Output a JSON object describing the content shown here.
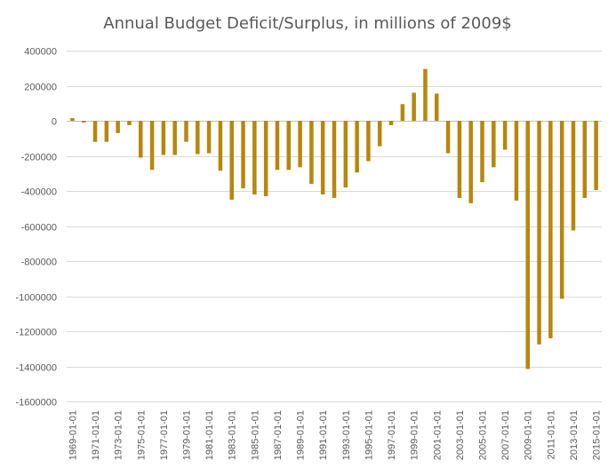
{
  "chart_data": {
    "type": "bar",
    "title": "Annual Budget Deficit/Surplus, in millions of 2009$",
    "xlabel": "",
    "ylabel": "",
    "ylim": [
      -1600000,
      400000
    ],
    "yticks": [
      400000,
      200000,
      0,
      -200000,
      -400000,
      -600000,
      -800000,
      -1000000,
      -1200000,
      -1400000,
      -1600000
    ],
    "ytick_labels": [
      "400000",
      "200000",
      "0",
      "-200000",
      "-400000",
      "-600000",
      "-800000",
      "-1000000",
      "-1200000",
      "-1400000",
      "-1600000"
    ],
    "grid": true,
    "bar_color": "#B8860B",
    "categories": [
      "1969-01-01",
      "1970-01-01",
      "1971-01-01",
      "1972-01-01",
      "1973-01-01",
      "1974-01-01",
      "1975-01-01",
      "1976-01-01",
      "1977-01-01",
      "1978-01-01",
      "1979-01-01",
      "1980-01-01",
      "1981-01-01",
      "1982-01-01",
      "1983-01-01",
      "1984-01-01",
      "1985-01-01",
      "1986-01-01",
      "1987-01-01",
      "1988-01-01",
      "1989-01-01",
      "1990-01-01",
      "1991-01-01",
      "1992-01-01",
      "1993-01-01",
      "1994-01-01",
      "1995-01-01",
      "1996-01-01",
      "1997-01-01",
      "1998-01-01",
      "1999-01-01",
      "2000-01-01",
      "2001-01-01",
      "2002-01-01",
      "2003-01-01",
      "2004-01-01",
      "2005-01-01",
      "2006-01-01",
      "2007-01-01",
      "2008-01-01",
      "2009-01-01",
      "2010-01-01",
      "2011-01-01",
      "2012-01-01",
      "2013-01-01",
      "2014-01-01",
      "2015-01-01"
    ],
    "shown_tick_labels": [
      "1969-01-01",
      "1971-01-01",
      "1973-01-01",
      "1975-01-01",
      "1977-01-01",
      "1979-01-01",
      "1981-01-01",
      "1983-01-01",
      "1985-01-01",
      "1987-01-01",
      "1989-01-01",
      "1991-01-01",
      "1993-01-01",
      "1995-01-01",
      "1997-01-01",
      "1999-01-01",
      "2001-01-01",
      "2003-01-01",
      "2005-01-01",
      "2007-01-01",
      "2009-01-01",
      "2011-01-01",
      "2013-01-01",
      "2015-01-01"
    ],
    "values": [
      15000,
      -10000,
      -120000,
      -120000,
      -70000,
      -25000,
      -210000,
      -280000,
      -195000,
      -195000,
      -120000,
      -190000,
      -185000,
      -285000,
      -450000,
      -385000,
      -420000,
      -430000,
      -280000,
      -280000,
      -265000,
      -360000,
      -420000,
      -440000,
      -380000,
      -295000,
      -230000,
      -145000,
      -25000,
      95000,
      160000,
      295000,
      155000,
      -185000,
      -440000,
      -470000,
      -350000,
      -265000,
      -165000,
      -455000,
      -1415000,
      -1275000,
      -1240000,
      -1015000,
      -625000,
      -440000,
      -395000
    ]
  }
}
